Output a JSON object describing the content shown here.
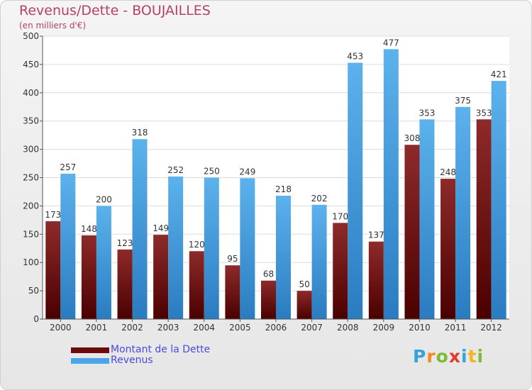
{
  "header": {
    "title": "Revenus/Dette - BOUJAILLES",
    "subtitle": "(en milliers d'€)"
  },
  "legend": {
    "items": [
      {
        "label": "Montant de la Dette",
        "color": "#7a1a1a"
      },
      {
        "label": "Revenus",
        "color": "#4aa6e8"
      }
    ]
  },
  "logo": {
    "text": "Proxiti"
  },
  "colors": {
    "debt": "#7a1a1a",
    "revenue": "#4aa6e8",
    "title": "#b5406a"
  },
  "chart_data": {
    "type": "bar",
    "title": "Revenus/Dette - BOUJAILLES",
    "subtitle": "(en milliers d'€)",
    "categories": [
      "2000",
      "2001",
      "2002",
      "2003",
      "2004",
      "2005",
      "2006",
      "2007",
      "2008",
      "2009",
      "2010",
      "2011",
      "2012"
    ],
    "series": [
      {
        "name": "Montant de la Dette",
        "values": [
          173,
          148,
          123,
          149,
          120,
          95,
          68,
          50,
          170,
          137,
          308,
          248,
          353
        ]
      },
      {
        "name": "Revenus",
        "values": [
          257,
          200,
          318,
          252,
          250,
          249,
          218,
          202,
          453,
          477,
          353,
          375,
          421
        ]
      }
    ],
    "ylim": [
      0,
      500
    ],
    "yticks": [
      0,
      50,
      100,
      150,
      200,
      250,
      300,
      350,
      400,
      450,
      500
    ],
    "grid": true,
    "legend": "bottom-left"
  }
}
